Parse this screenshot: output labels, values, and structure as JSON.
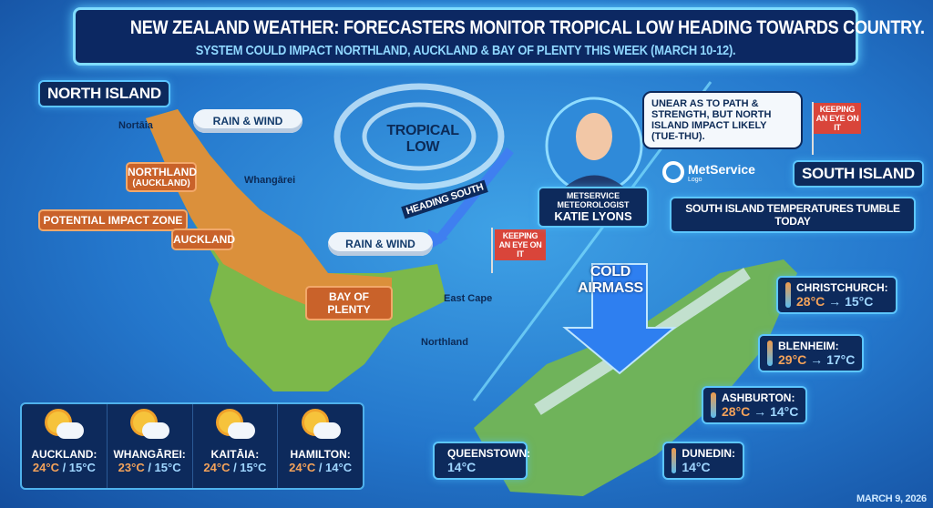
{
  "header": {
    "title": "NEW ZEALAND WEATHER: FORECASTERS MONITOR TROPICAL LOW HEADING TOWARDS COUNTRY.",
    "subtitle": "SYSTEM COULD IMPACT NORTHLAND, AUCKLAND & BAY OF PLENTY THIS WEEK (MARCH 10-12)."
  },
  "north": {
    "label": "NORTH ISLAND",
    "places": {
      "nortaia": "Nortāia",
      "whangarei": "Whangārei",
      "east_cape": "East Cape",
      "northland": "Northland"
    },
    "clouds": [
      "RAIN & WIND",
      "RAIN & WIND"
    ],
    "zones": {
      "northland": "NORTHLAND",
      "northland_sub": "(AUCKLAND)",
      "impact": "POTENTIAL IMPACT ZONE",
      "auckland": "AUCKLAND",
      "bay": "BAY OF PLENTY"
    },
    "flag": "KEEPING AN EYE ON IT"
  },
  "tropical": {
    "label": "TROPICAL LOW",
    "heading": "HEADING SOUTH"
  },
  "meteorologist": {
    "role": "METSERVICE METEOROLOGIST",
    "name": "KATIE LYONS",
    "quote": "UNEAR AS TO PATH & STRENGTH, BUT NORTH ISLAND IMPACT LIKELY (TUE-THU).",
    "flag": "KEEPING AN EYE ON IT"
  },
  "logo": {
    "name": "MetService",
    "sub": "Logo"
  },
  "south": {
    "label": "SOUTH ISLAND",
    "banner": "SOUTH ISLAND TEMPERATURES TUMBLE TODAY",
    "cold": "COLD AIRMASS",
    "cities": [
      {
        "name": "CHRISTCHURCH:",
        "from": "28°C",
        "to": "15°C"
      },
      {
        "name": "BLENHEIM:",
        "from": "29°C",
        "to": "17°C"
      },
      {
        "name": "ASHBURTON:",
        "from": "28°C",
        "to": "14°C"
      },
      {
        "name": "QUEENSTOWN:",
        "to": "14°C"
      },
      {
        "name": "DUNEDIN:",
        "to": "14°C"
      }
    ],
    "arrow": "→"
  },
  "forecast": [
    {
      "name": "AUCKLAND:",
      "hi": "24°C",
      "lo": "15°C",
      "icon": "partly-cloudy-icon"
    },
    {
      "name": "WHANGĀREI:",
      "hi": "23°C",
      "lo": "15°C",
      "icon": "partly-cloudy-icon"
    },
    {
      "name": "KAITĀIA:",
      "hi": "24°C",
      "lo": "15°C",
      "icon": "partly-cloudy-icon"
    },
    {
      "name": "HAMILTON:",
      "hi": "24°C",
      "lo": "14°C",
      "icon": "partly-cloudy-icon"
    }
  ],
  "sep": " / ",
  "date": "MARCH 9, 2026",
  "colors": {
    "accent": "#5cc6ff",
    "impact": "#c9622a",
    "navy": "#0d2a5c",
    "warm": "#f3a25a",
    "cool": "#9fd6ff"
  }
}
